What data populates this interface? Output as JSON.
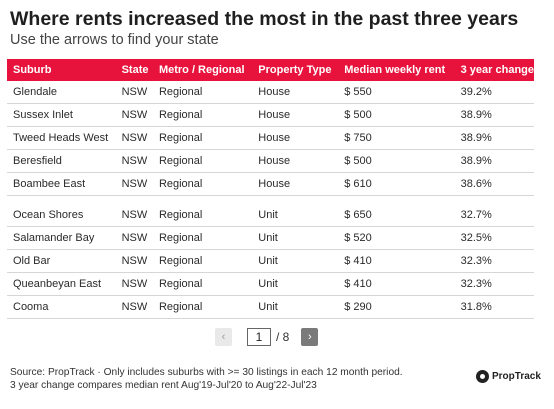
{
  "title": "Where rents increased the most in the past three years",
  "subtitle": "Use the arrows to find your state",
  "table": {
    "headers": [
      "Suburb",
      "State",
      "Metro / Regional",
      "Property Type",
      "Median weekly rent",
      "3 year change"
    ],
    "group1": [
      [
        "Glendale",
        "NSW",
        "Regional",
        "House",
        "$ 550",
        "39.2%"
      ],
      [
        "Sussex Inlet",
        "NSW",
        "Regional",
        "House",
        "$ 500",
        "38.9%"
      ],
      [
        "Tweed Heads West",
        "NSW",
        "Regional",
        "House",
        "$ 750",
        "38.9%"
      ],
      [
        "Beresfield",
        "NSW",
        "Regional",
        "House",
        "$ 500",
        "38.9%"
      ],
      [
        "Boambee East",
        "NSW",
        "Regional",
        "House",
        "$ 610",
        "38.6%"
      ]
    ],
    "group2": [
      [
        "Ocean Shores",
        "NSW",
        "Regional",
        "Unit",
        "$ 650",
        "32.7%"
      ],
      [
        "Salamander Bay",
        "NSW",
        "Regional",
        "Unit",
        "$ 520",
        "32.5%"
      ],
      [
        "Old Bar",
        "NSW",
        "Regional",
        "Unit",
        "$ 410",
        "32.3%"
      ],
      [
        "Queanbeyan East",
        "NSW",
        "Regional",
        "Unit",
        "$ 410",
        "32.3%"
      ],
      [
        "Cooma",
        "NSW",
        "Regional",
        "Unit",
        "$ 290",
        "31.8%"
      ]
    ]
  },
  "pagination": {
    "prev_icon": "chevron-left-icon",
    "prev_glyph": "‹",
    "current_page": "1",
    "total_label": "/ 8",
    "next_icon": "chevron-right-icon",
    "next_glyph": "›"
  },
  "footer": {
    "line1": "Source: PropTrack · Only includes suburbs with >= 30 listings in each 12 month period.",
    "line2": "3 year change compares median rent Aug'19-Jul'20 to Aug'22-Jul'23"
  },
  "brand": {
    "name": "PropTrack",
    "icon": "proptrack-logo-icon"
  },
  "colors": {
    "header_bg": "#e8133c",
    "header_text": "#ffffff",
    "row_border": "#d6d6d6"
  }
}
